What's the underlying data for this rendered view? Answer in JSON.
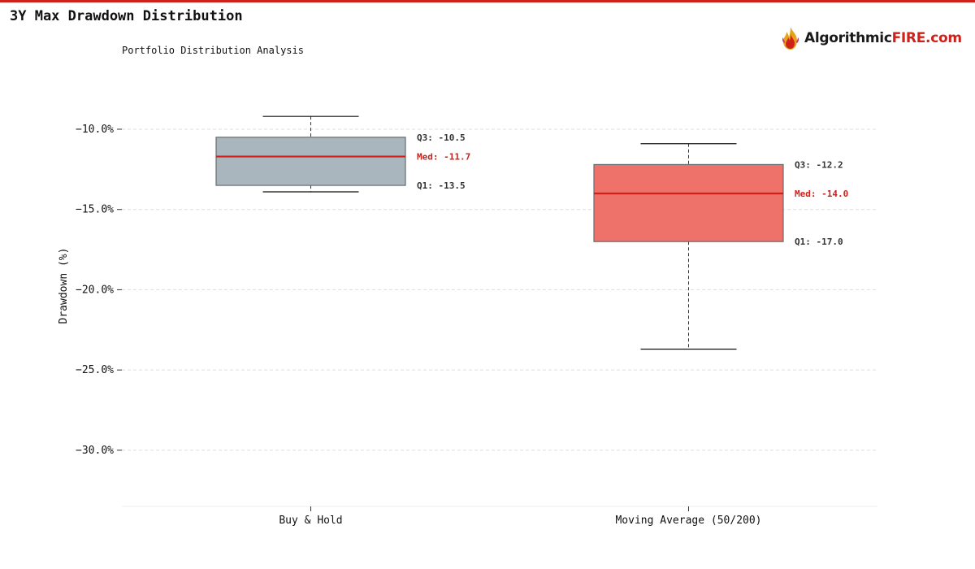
{
  "header": {
    "title": "3Y Max Drawdown Distribution",
    "subtitle": "Portfolio Distribution Analysis"
  },
  "logo": {
    "text_dark": "Algorithmic",
    "text_accent": "FIRE.com",
    "icon": "flame-icon"
  },
  "colors": {
    "accent": "#d0201a",
    "median": "#d0201a",
    "grid": "#dddddd"
  },
  "chart_data": {
    "type": "box",
    "title": "3Y Max Drawdown Distribution",
    "subtitle": "Portfolio Distribution Analysis",
    "ylabel": "Drawdown (%)",
    "xlabel": "",
    "ylim": [
      -33.5,
      -6.0
    ],
    "yticks": [
      -10,
      -15,
      -20,
      -25,
      -30
    ],
    "ytick_labels": [
      "−10.0%",
      "−15.0%",
      "−20.0%",
      "−25.0%",
      "−30.0%"
    ],
    "grid": true,
    "categories": [
      "Buy & Hold",
      "Moving Average (50/200)"
    ],
    "series": [
      {
        "category": "Buy & Hold",
        "whisker_high": -9.2,
        "q3": -10.5,
        "median": -11.7,
        "q1": -13.5,
        "whisker_low": -13.9,
        "color": "#a9b6bd",
        "labels": {
          "q3": "Q3: -10.5",
          "median": "Med: -11.7",
          "q1": "Q1: -13.5"
        }
      },
      {
        "category": "Moving Average (50/200)",
        "whisker_high": -10.9,
        "q3": -12.2,
        "median": -14.0,
        "q1": -17.0,
        "whisker_low": -23.7,
        "color": "#ee7269",
        "labels": {
          "q3": "Q3: -12.2",
          "median": "Med: -14.0",
          "q1": "Q1: -17.0"
        }
      }
    ]
  }
}
